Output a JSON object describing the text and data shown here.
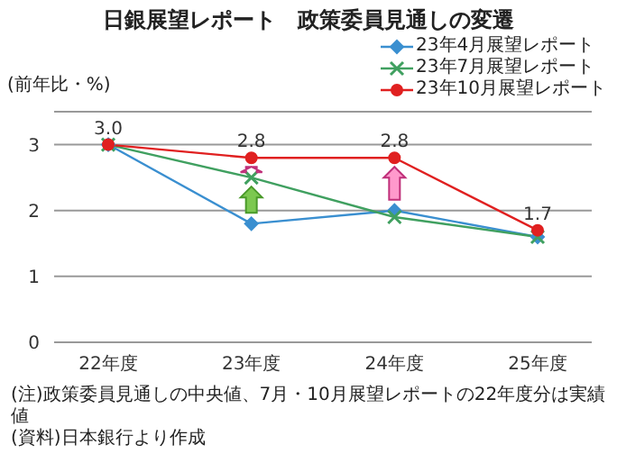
{
  "chart_data": {
    "type": "line",
    "title": "日銀展望レポート　政策委員見通しの変遷",
    "ylabel": "(前年比・%)",
    "categories": [
      "22年度",
      "23年度",
      "24年度",
      "25年度"
    ],
    "series": [
      {
        "name": "23年4月展望レポート",
        "color": "#3a8fd0",
        "marker": "diamond",
        "values": [
          3.0,
          1.8,
          2.0,
          1.6
        ]
      },
      {
        "name": "23年7月展望レポート",
        "color": "#40a060",
        "marker": "cross",
        "values": [
          3.0,
          2.5,
          1.9,
          1.6
        ]
      },
      {
        "name": "23年10月展望レポート",
        "color": "#e02020",
        "marker": "circle",
        "values": [
          3.0,
          2.8,
          2.8,
          1.7
        ],
        "value_labels": [
          "3.0",
          "2.8",
          "2.8",
          "1.7"
        ]
      }
    ],
    "ylim": [
      0,
      3.5
    ],
    "yticks": [
      0,
      1,
      2,
      3
    ],
    "grid": "y",
    "legend": "top right",
    "annotations": [
      "(注)政策委員見通しの中央値、7月・10月展望レポートの22年度分は実績値",
      "(資料)日本銀行より作成"
    ]
  }
}
